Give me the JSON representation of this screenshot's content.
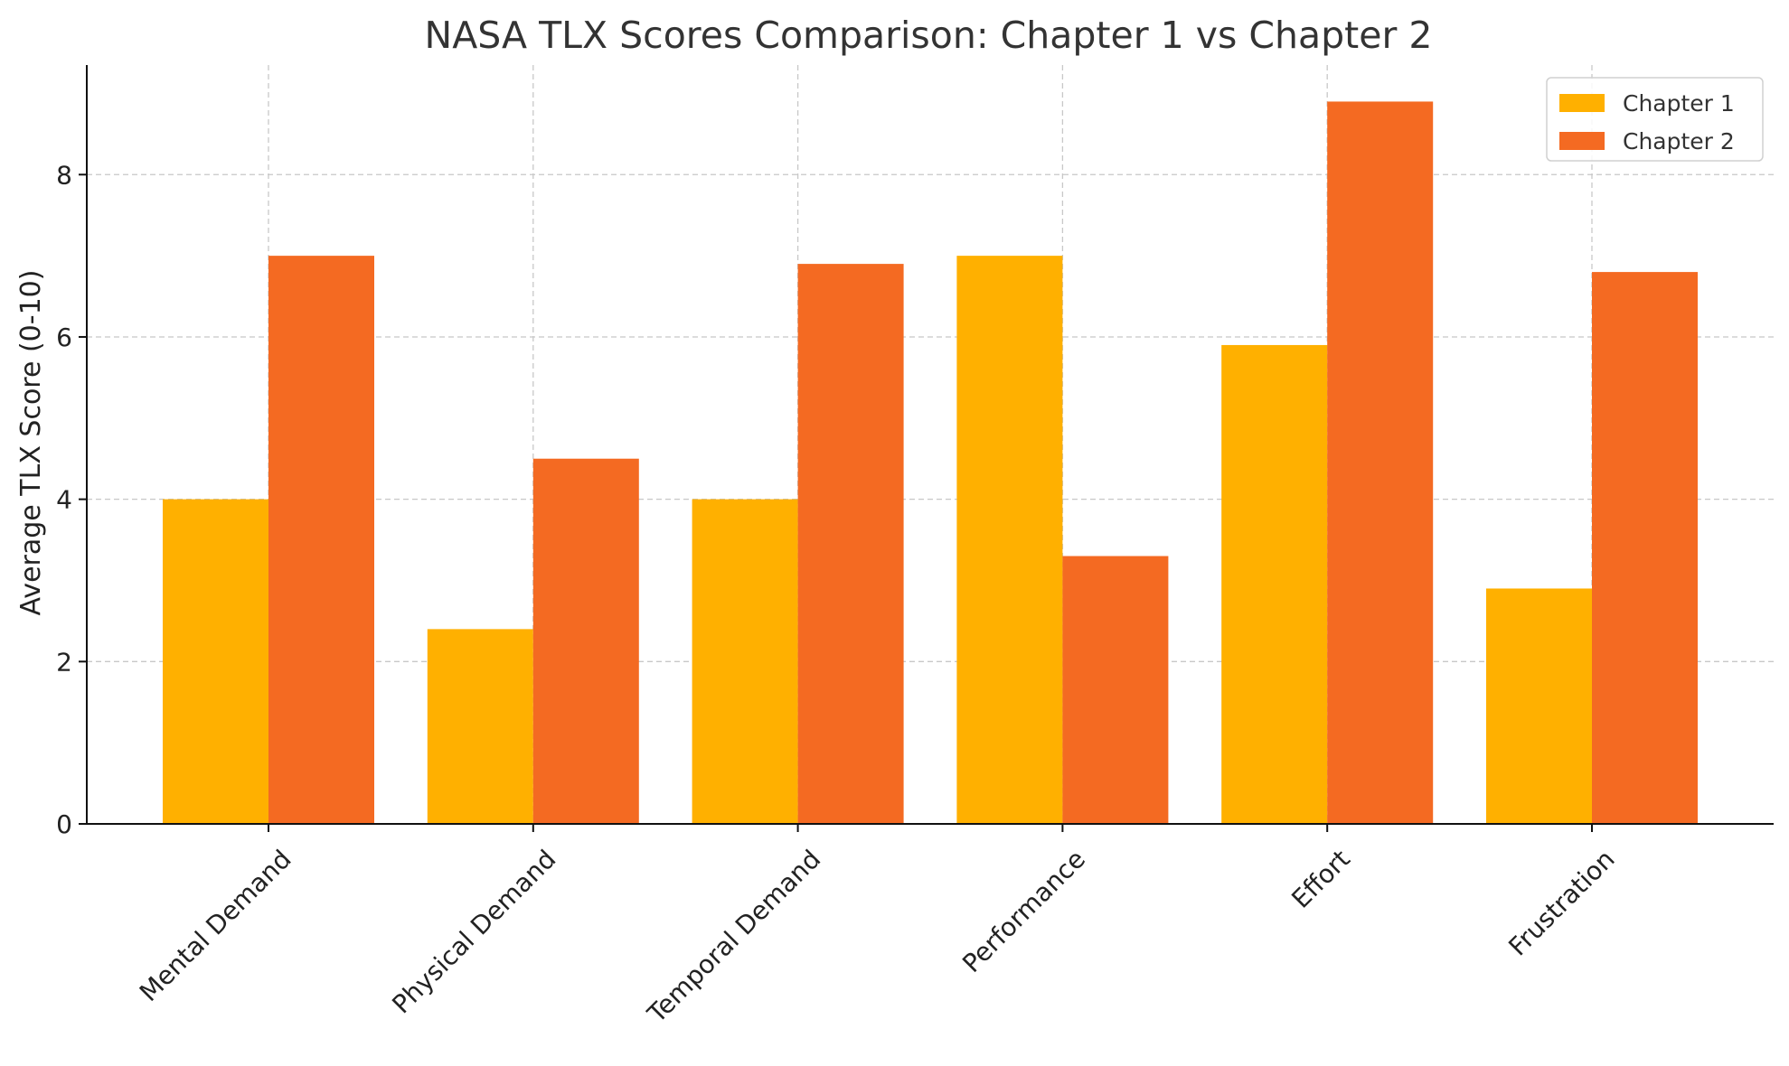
{
  "chart_data": {
    "type": "bar",
    "title": "NASA TLX Scores Comparison: Chapter 1 vs Chapter 2",
    "xlabel": "",
    "ylabel": "Average TLX Score (0-10)",
    "categories": [
      "Mental Demand",
      "Physical Demand",
      "Temporal Demand",
      "Performance",
      "Effort",
      "Frustration"
    ],
    "series": [
      {
        "name": "Chapter 1",
        "color": "#FFB000",
        "values": [
          4.0,
          2.4,
          4.0,
          7.0,
          5.9,
          2.9
        ]
      },
      {
        "name": "Chapter 2",
        "color": "#F46A22",
        "values": [
          7.0,
          4.5,
          6.9,
          3.3,
          8.9,
          6.8
        ]
      }
    ],
    "yticks": [
      0,
      2,
      4,
      6,
      8
    ],
    "ylim": [
      0,
      9.35
    ],
    "grid": true,
    "legend_position": "top-right"
  }
}
